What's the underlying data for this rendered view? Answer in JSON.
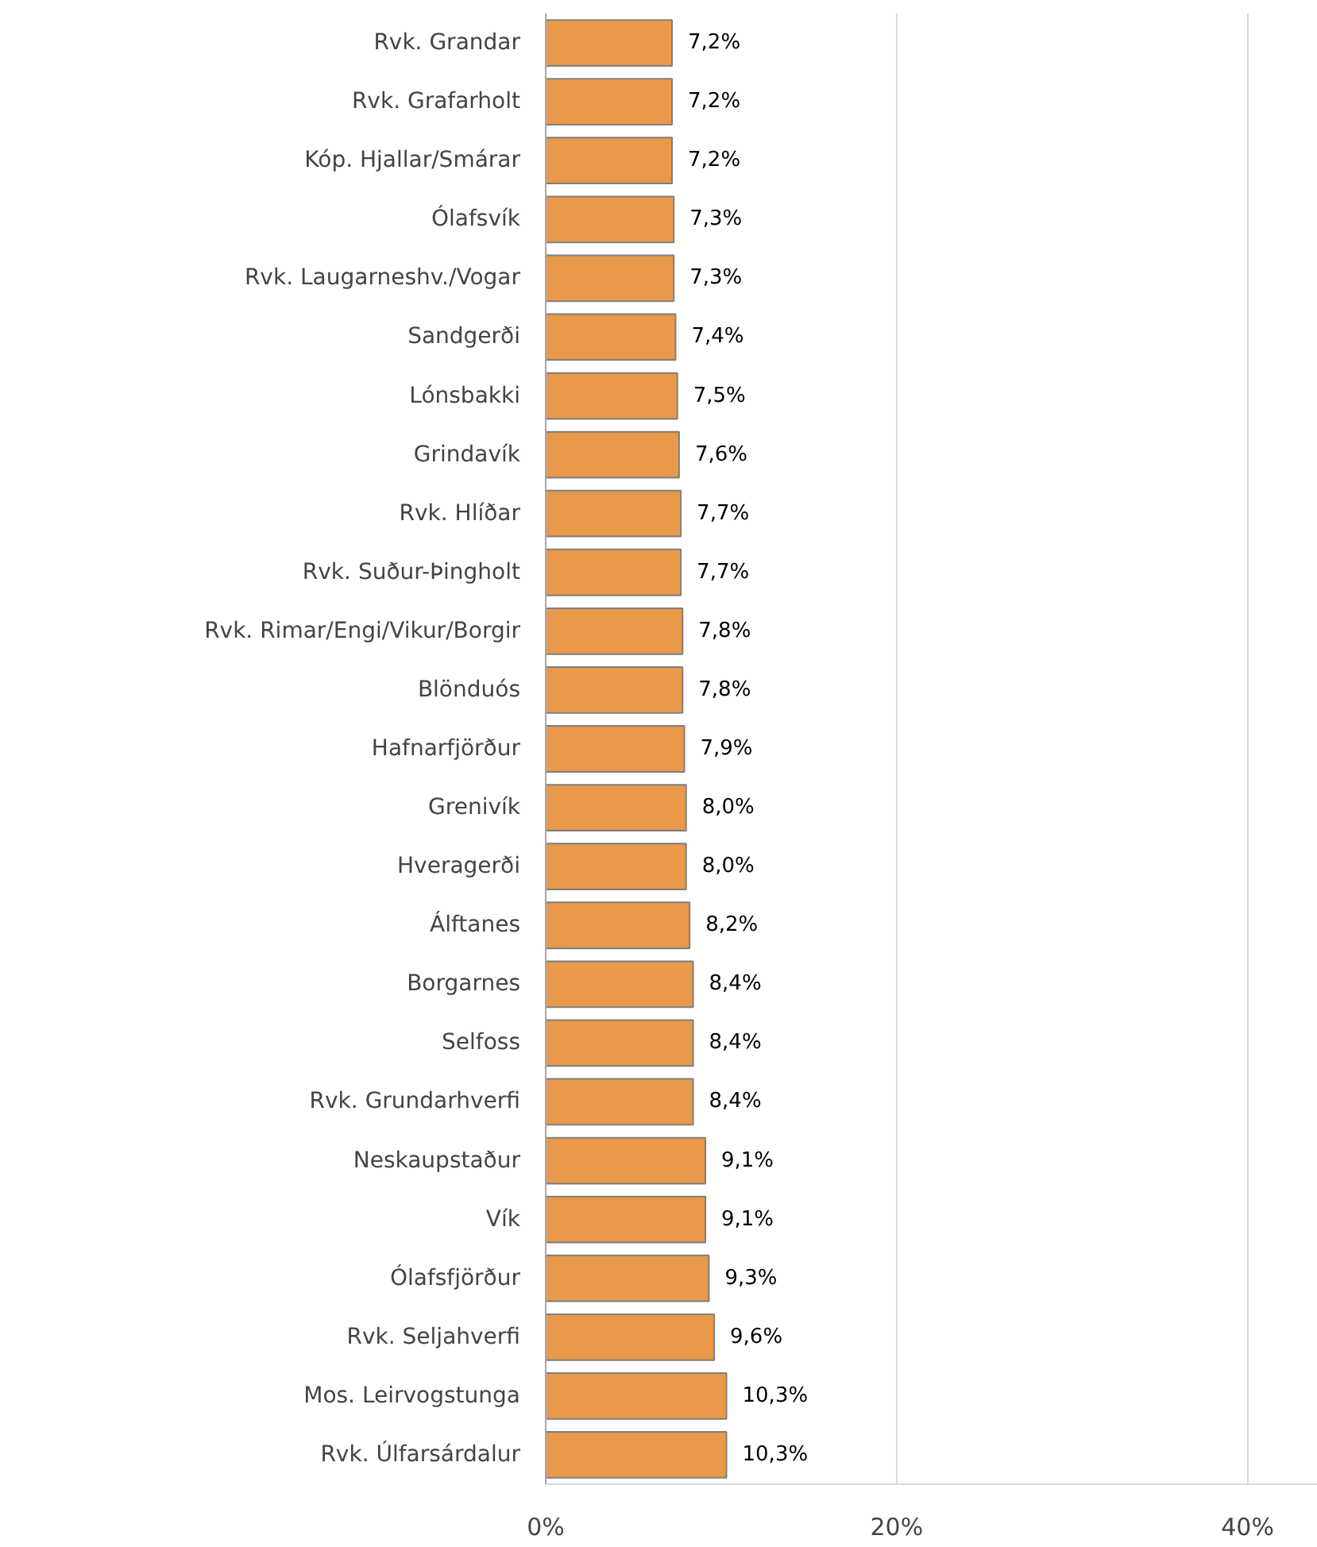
{
  "chart_data": {
    "type": "bar",
    "orientation": "horizontal",
    "categories": [
      "Rvk. Grandar",
      "Rvk. Grafarholt",
      "Kóp. Hjallar/Smárar",
      "Ólafsvík",
      "Rvk. Laugarneshv./Vogar",
      "Sandgerði",
      "Lónsbakki",
      "Grindavík",
      "Rvk. Hlíðar",
      "Rvk. Suður-Þingholt",
      "Rvk. Rimar/Engi/Vikur/Borgir",
      "Blönduós",
      "Hafnarfjörður",
      "Grenivík",
      "Hveragerði",
      "Álftanes",
      "Borgarnes",
      "Selfoss",
      "Rvk. Grundarhverfi",
      "Neskaupstaður",
      "Vík",
      "Ólafsfjörður",
      "Rvk. Seljahverfi",
      "Mos. Leirvogstunga",
      "Rvk. Úlfarsárdalur"
    ],
    "values": [
      7.2,
      7.2,
      7.2,
      7.3,
      7.3,
      7.4,
      7.5,
      7.6,
      7.7,
      7.7,
      7.8,
      7.8,
      7.9,
      8.0,
      8.0,
      8.2,
      8.4,
      8.4,
      8.4,
      9.1,
      9.1,
      9.3,
      9.6,
      10.3,
      10.3
    ],
    "value_labels": [
      "7,2%",
      "7,2%",
      "7,2%",
      "7,3%",
      "7,3%",
      "7,4%",
      "7,5%",
      "7,6%",
      "7,7%",
      "7,7%",
      "7,8%",
      "7,8%",
      "7,9%",
      "8,0%",
      "8,0%",
      "8,2%",
      "8,4%",
      "8,4%",
      "8,4%",
      "9,1%",
      "9,1%",
      "9,3%",
      "9,6%",
      "10,3%",
      "10,3%"
    ],
    "color": "#e8994a",
    "xlim": [
      0,
      44
    ],
    "xticks": [
      {
        "value": 0,
        "label": "0%"
      },
      {
        "value": 20,
        "label": "20%"
      },
      {
        "value": 40,
        "label": "40%"
      }
    ],
    "grid": "x"
  }
}
